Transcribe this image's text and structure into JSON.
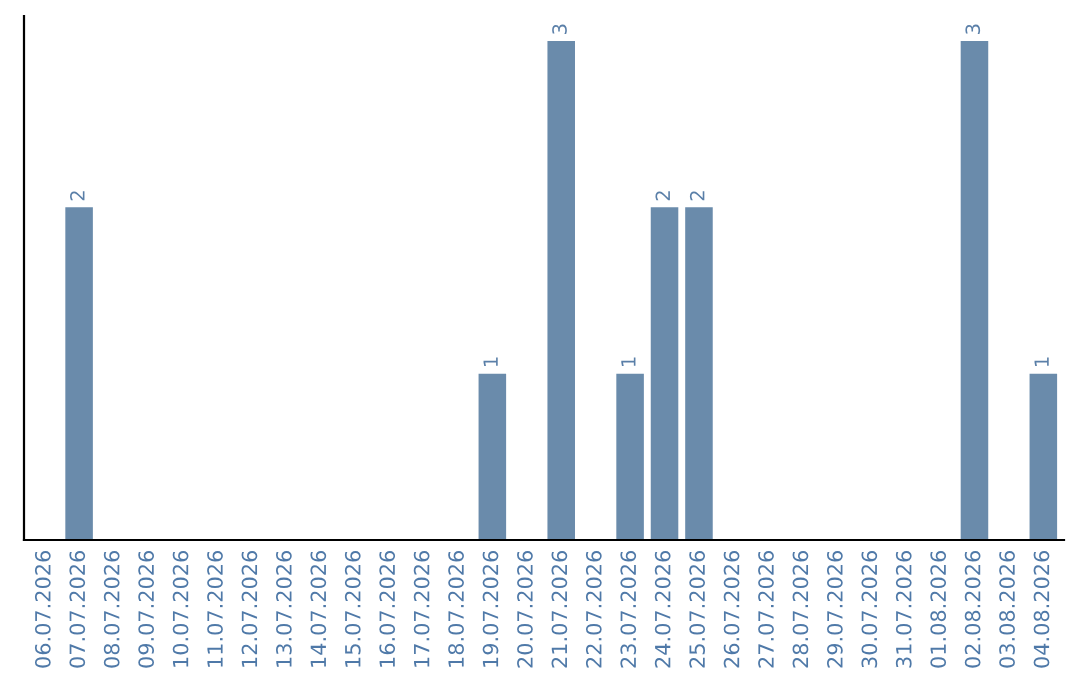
{
  "chart_data": {
    "type": "bar",
    "categories": [
      "06.07.2026",
      "07.07.2026",
      "08.07.2026",
      "09.07.2026",
      "10.07.2026",
      "11.07.2026",
      "12.07.2026",
      "13.07.2026",
      "14.07.2026",
      "15.07.2026",
      "16.07.2026",
      "17.07.2026",
      "18.07.2026",
      "19.07.2026",
      "20.07.2026",
      "21.07.2026",
      "22.07.2026",
      "23.07.2026",
      "24.07.2026",
      "25.07.2026",
      "26.07.2026",
      "27.07.2026",
      "28.07.2026",
      "29.07.2026",
      "30.07.2026",
      "31.07.2026",
      "01.08.2026",
      "02.08.2026",
      "03.08.2026",
      "04.08.2026"
    ],
    "values": [
      0,
      2,
      0,
      0,
      0,
      0,
      0,
      0,
      0,
      0,
      0,
      0,
      0,
      1,
      0,
      3,
      0,
      1,
      2,
      2,
      0,
      0,
      0,
      0,
      0,
      0,
      0,
      3,
      0,
      1
    ],
    "value_labels": [
      null,
      "2",
      null,
      null,
      null,
      null,
      null,
      null,
      null,
      null,
      null,
      null,
      null,
      "1",
      null,
      "3",
      null,
      "1",
      "2",
      "2",
      null,
      null,
      null,
      null,
      null,
      null,
      null,
      "3",
      null,
      "1"
    ],
    "color": "#6a8bab",
    "grid": false,
    "legend": false,
    "tick_labels": "x"
  }
}
